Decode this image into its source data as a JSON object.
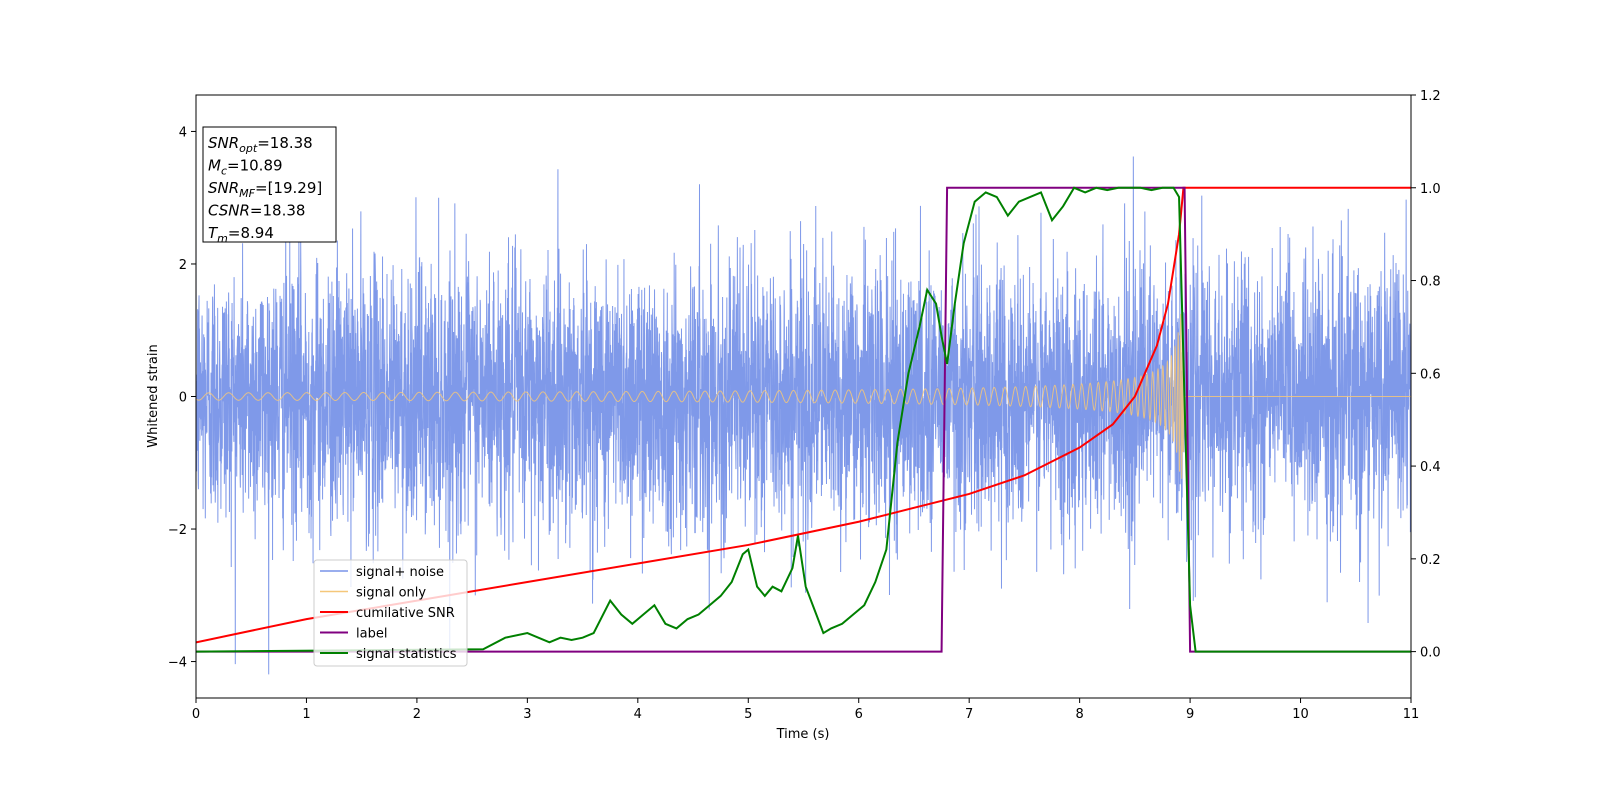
{
  "chart_data": {
    "type": "line",
    "xlabel": "Time (s)",
    "ylabel": "Whitened strain",
    "xlim": [
      0,
      11
    ],
    "ylim_left": [
      -4.55,
      4.55
    ],
    "ylim_right": [
      -0.1,
      1.2
    ],
    "x_ticks": [
      0,
      1,
      2,
      3,
      4,
      5,
      6,
      7,
      8,
      9,
      10,
      11
    ],
    "y_ticks_left": [
      -4,
      -2,
      0,
      2,
      4
    ],
    "y_ticks_right": [
      0.0,
      0.2,
      0.4,
      0.6,
      0.8,
      1.0,
      1.2
    ],
    "grid": false,
    "legend_position": "lower-left",
    "info_box": {
      "lines": [
        {
          "main": "SNR",
          "sub": "opt",
          "value": "=18.38"
        },
        {
          "main": "M",
          "sub": "c",
          "value": "=10.89"
        },
        {
          "main": "SNR",
          "sub": "MF",
          "value": "=[19.29]"
        },
        {
          "main": "CSNR",
          "sub": "",
          "value": "=18.38"
        },
        {
          "main": "T",
          "sub": "m",
          "value": "=8.94"
        }
      ]
    },
    "series": [
      {
        "name": "signal+ noise",
        "axis": "left",
        "color": "#7893e8",
        "kind": "noise",
        "amplitude_sigma": 1.0,
        "duration_s": 11
      },
      {
        "name": "signal only",
        "axis": "left",
        "color": "#f5c77a",
        "kind": "chirp",
        "merger_time": 8.94,
        "peak_amplitude": 1.25
      },
      {
        "name": "cumilative SNR",
        "axis": "right",
        "color": "#ff0000",
        "x": [
          0,
          1,
          2,
          3,
          4,
          5,
          6,
          6.5,
          7,
          7.5,
          8,
          8.3,
          8.5,
          8.7,
          8.8,
          8.9,
          8.94,
          11
        ],
        "y": [
          0.02,
          0.07,
          0.11,
          0.15,
          0.19,
          0.23,
          0.28,
          0.31,
          0.34,
          0.38,
          0.44,
          0.49,
          0.55,
          0.66,
          0.75,
          0.9,
          1.0,
          1.0
        ]
      },
      {
        "name": "label",
        "axis": "right",
        "color": "#800080",
        "x": [
          0,
          6.75,
          6.8,
          8.95,
          9.0,
          11
        ],
        "y": [
          0,
          0,
          1,
          1,
          0,
          0
        ]
      },
      {
        "name": "signal statistics",
        "axis": "right",
        "color": "#008000",
        "x": [
          0,
          2.6,
          2.8,
          3.0,
          3.1,
          3.2,
          3.3,
          3.4,
          3.5,
          3.6,
          3.75,
          3.85,
          3.95,
          4.05,
          4.15,
          4.25,
          4.35,
          4.45,
          4.55,
          4.65,
          4.75,
          4.85,
          4.95,
          5.0,
          5.08,
          5.15,
          5.22,
          5.3,
          5.4,
          5.45,
          5.52,
          5.6,
          5.68,
          5.75,
          5.85,
          5.95,
          6.05,
          6.15,
          6.25,
          6.35,
          6.45,
          6.55,
          6.62,
          6.7,
          6.75,
          6.8,
          6.87,
          6.95,
          7.05,
          7.15,
          7.25,
          7.35,
          7.45,
          7.55,
          7.65,
          7.75,
          7.85,
          7.95,
          8.05,
          8.15,
          8.25,
          8.35,
          8.45,
          8.55,
          8.65,
          8.75,
          8.85,
          8.9,
          9.0,
          9.05,
          11
        ],
        "y": [
          0,
          0.005,
          0.03,
          0.04,
          0.03,
          0.02,
          0.03,
          0.025,
          0.03,
          0.04,
          0.11,
          0.08,
          0.06,
          0.08,
          0.1,
          0.06,
          0.05,
          0.07,
          0.08,
          0.1,
          0.12,
          0.15,
          0.21,
          0.22,
          0.14,
          0.12,
          0.14,
          0.13,
          0.18,
          0.25,
          0.14,
          0.09,
          0.04,
          0.05,
          0.06,
          0.08,
          0.1,
          0.15,
          0.22,
          0.45,
          0.6,
          0.7,
          0.78,
          0.75,
          0.68,
          0.62,
          0.75,
          0.88,
          0.97,
          0.99,
          0.98,
          0.94,
          0.97,
          0.98,
          0.99,
          0.93,
          0.96,
          1.0,
          0.99,
          1.0,
          0.995,
          1.0,
          1.0,
          1.0,
          0.995,
          1.0,
          1.0,
          0.98,
          0.1,
          0.0,
          0.0
        ]
      }
    ]
  }
}
